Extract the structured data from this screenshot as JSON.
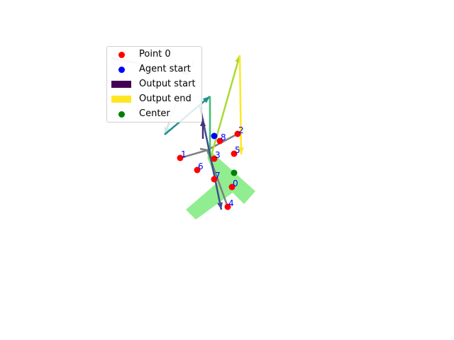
{
  "legend": {
    "items": [
      {
        "label": "Point 0",
        "marker": "dot",
        "color": "#ff0000"
      },
      {
        "label": "Agent start",
        "marker": "dot",
        "color": "#0000ff"
      },
      {
        "label": "Output start",
        "marker": "patch",
        "color": "#440154"
      },
      {
        "label": "Output end",
        "marker": "patch",
        "color": "#fde725"
      },
      {
        "label": "Center",
        "marker": "dot",
        "color": "#008000"
      }
    ]
  },
  "points": [
    {
      "label": "0"
    },
    {
      "label": "1"
    },
    {
      "label": "2"
    },
    {
      "label": "3"
    },
    {
      "label": "4"
    },
    {
      "label": "5"
    },
    {
      "label": "6"
    },
    {
      "label": "7"
    },
    {
      "label": "8"
    }
  ],
  "colors": {
    "region": "#90ee90",
    "point": "#ff0000",
    "agent": "#0000ff",
    "center": "#008000",
    "connector": "#808080",
    "label": "#0000ff"
  }
}
